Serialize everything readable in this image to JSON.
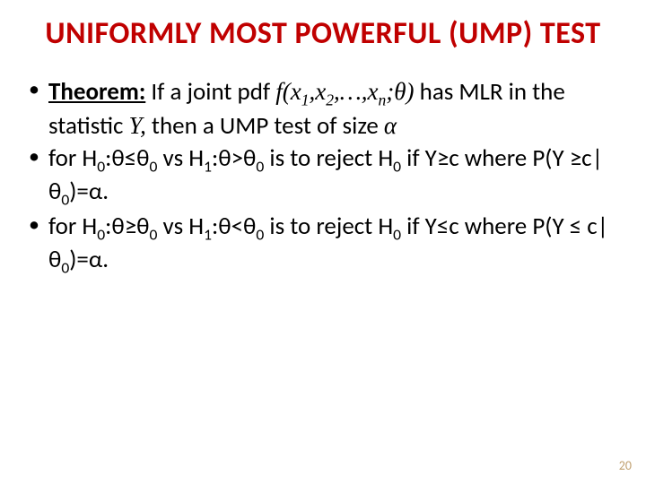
{
  "title": "UNIFORMLY MOST POWERFUL (UMP) TEST",
  "bullets": {
    "b0_prefix_bold": "Theorem:",
    "b0_t1": " If a joint pdf ",
    "b0_pdf_f": "f(x",
    "b0_s1": "1",
    "b0_c1": ",x",
    "b0_s2": "2",
    "b0_c2": ",…,x",
    "b0_sn": "n",
    "b0_c3": ";",
    "b0_theta": "θ",
    "b0_c4": ")",
    "b0_t2": " has MLR in the statistic ",
    "b0_Y": "Y,",
    "b0_t3": " then a UMP test of size ",
    "b0_alpha": "α",
    "b1_t1": "for H",
    "b1_s0a": "0",
    "b1_t2": ":θ≤θ",
    "b1_s0b": "0",
    "b1_t3": " vs H",
    "b1_s1": "1",
    "b1_t4": ":θ>θ",
    "b1_s0c": "0",
    "b1_t5": "  is to reject H",
    "b1_s0d": "0",
    "b1_t6": " if Y≥c where P(Y ≥c|θ",
    "b1_s0e": "0",
    "b1_t7": ")=α.",
    "b2_t1": "for H",
    "b2_s0a": "0",
    "b2_t2": ":θ≥θ",
    "b2_s0b": "0",
    "b2_t3": " vs H",
    "b2_s1": "1",
    "b2_t4": ":θ<θ",
    "b2_s0c": "0",
    "b2_t5": "  is to reject H",
    "b2_s0d": "0",
    "b2_t6": " if Y≤c where P(Y ≤ c|θ",
    "b2_s0e": "0",
    "b2_t7": ")=α."
  },
  "page_number": "20",
  "colors": {
    "title": "#c00000",
    "text": "#000000",
    "page_num": "#c0a070",
    "background": "#ffffff"
  },
  "typography": {
    "title_fontsize": 34,
    "body_fontsize": 27,
    "pagenum_fontsize": 14,
    "body_font": "Calibri",
    "math_font": "Times New Roman"
  }
}
